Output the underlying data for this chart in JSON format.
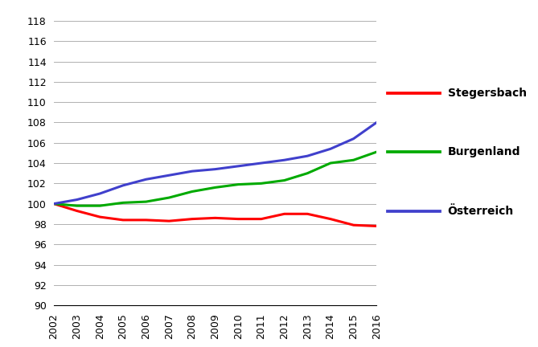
{
  "years": [
    2002,
    2003,
    2004,
    2005,
    2006,
    2007,
    2008,
    2009,
    2010,
    2011,
    2012,
    2013,
    2014,
    2015,
    2016
  ],
  "stegersbach": [
    100.0,
    99.3,
    98.7,
    98.4,
    98.4,
    98.3,
    98.5,
    98.6,
    98.5,
    98.5,
    99.0,
    99.0,
    98.5,
    97.9,
    97.8
  ],
  "burgenland": [
    100.0,
    99.8,
    99.8,
    100.1,
    100.2,
    100.6,
    101.2,
    101.6,
    101.9,
    102.0,
    102.3,
    103.0,
    104.0,
    104.3,
    105.1
  ],
  "oesterreich": [
    100.0,
    100.4,
    101.0,
    101.8,
    102.4,
    102.8,
    103.2,
    103.4,
    103.7,
    104.0,
    104.3,
    104.7,
    105.4,
    106.4,
    108.0
  ],
  "colors": {
    "stegersbach": "#FF0000",
    "burgenland": "#00AA00",
    "oesterreich": "#4040CC"
  },
  "legend_labels": [
    "Stegersbach",
    "Burgenland",
    "Österreich"
  ],
  "ylim": [
    90,
    118
  ],
  "yticks": [
    90,
    92,
    94,
    96,
    98,
    100,
    102,
    104,
    106,
    108,
    110,
    112,
    114,
    116,
    118
  ],
  "background_color": "#FFFFFF",
  "line_width": 2.2,
  "grid_color": "#B0B0B0",
  "grid_linewidth": 0.7,
  "tick_fontsize": 9,
  "legend_fontsize": 10,
  "fig_width": 6.69,
  "fig_height": 4.32,
  "dpi": 100
}
